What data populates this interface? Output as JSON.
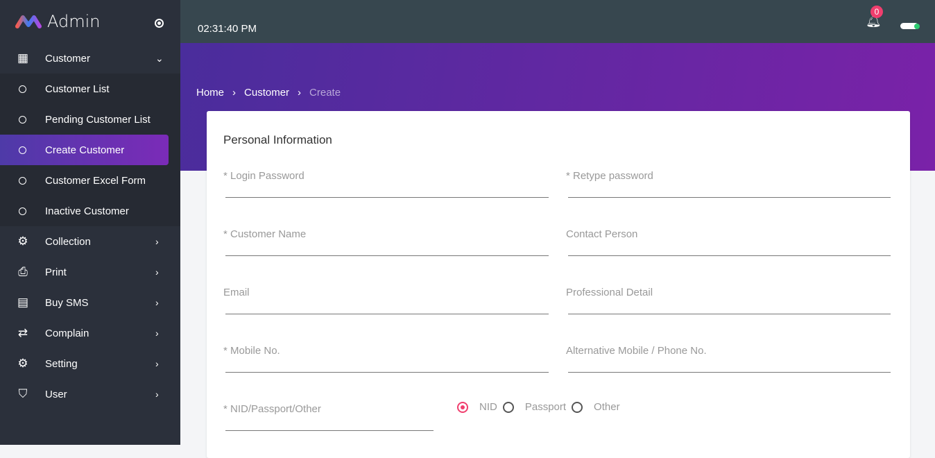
{
  "brand": {
    "title": "Admin"
  },
  "sidebar": {
    "items": [
      {
        "label": "Customer",
        "icon": "dashboard-icon",
        "expanded": true,
        "children": [
          {
            "label": "Customer List"
          },
          {
            "label": "Pending Customer List"
          },
          {
            "label": "Create Customer",
            "active": true
          },
          {
            "label": "Customer Excel Form"
          },
          {
            "label": "Inactive Customer"
          }
        ]
      },
      {
        "label": "Collection",
        "icon": "gear-icon"
      },
      {
        "label": "Print",
        "icon": "printer-icon"
      },
      {
        "label": "Buy SMS",
        "icon": "message-icon"
      },
      {
        "label": "Complain",
        "icon": "compare-arrows-icon"
      },
      {
        "label": "Setting",
        "icon": "settings-box-icon"
      },
      {
        "label": "User",
        "icon": "shield-check-icon"
      }
    ]
  },
  "topbar": {
    "time": "02:31:40 PM",
    "notifications": "0"
  },
  "breadcrumb": [
    "Home",
    "Customer",
    "Create"
  ],
  "form": {
    "title": "Personal Information",
    "fields": [
      "* Login Password",
      "* Retype password",
      "* Customer Name",
      "Contact Person",
      "Email",
      "Professional Detail",
      "* Mobile No.",
      "Alternative Mobile / Phone No.",
      "* NID/Passport/Other"
    ],
    "id_type": {
      "options": [
        "NID",
        "Passport",
        "Other"
      ],
      "selected": "NID"
    }
  },
  "colors": {
    "accent": "#f03e6e",
    "sidebar": "#2b303b",
    "topbar": "#37474f"
  }
}
